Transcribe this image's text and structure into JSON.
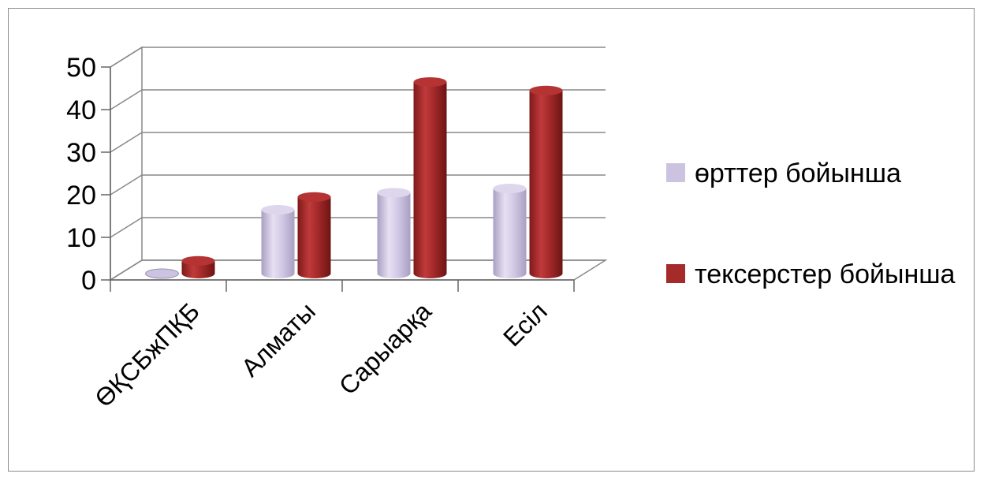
{
  "chart_data": {
    "type": "bar",
    "style": "3d-cylinder",
    "categories": [
      "ӨҚСБжПҚБ",
      "Алматы",
      "Сарыарқа",
      "Есіл"
    ],
    "series": [
      {
        "name": "өрттер бойынша",
        "values": [
          0,
          15,
          19,
          20
        ],
        "color": "#cbc3df"
      },
      {
        "name": "тексерстер бойынша",
        "values": [
          3,
          18,
          45,
          43
        ],
        "color": "#a52a2a"
      }
    ],
    "y_ticks": [
      "0",
      "10",
      "20",
      "30",
      "40",
      "50"
    ],
    "ylim": [
      0,
      50
    ],
    "grid": true,
    "legend_position": "right"
  },
  "legend": {
    "items": [
      {
        "label": "өрттер бойынша",
        "color": "#cbc3df"
      },
      {
        "label": "тексерстер бойынша",
        "color": "#a52a2a"
      }
    ]
  }
}
